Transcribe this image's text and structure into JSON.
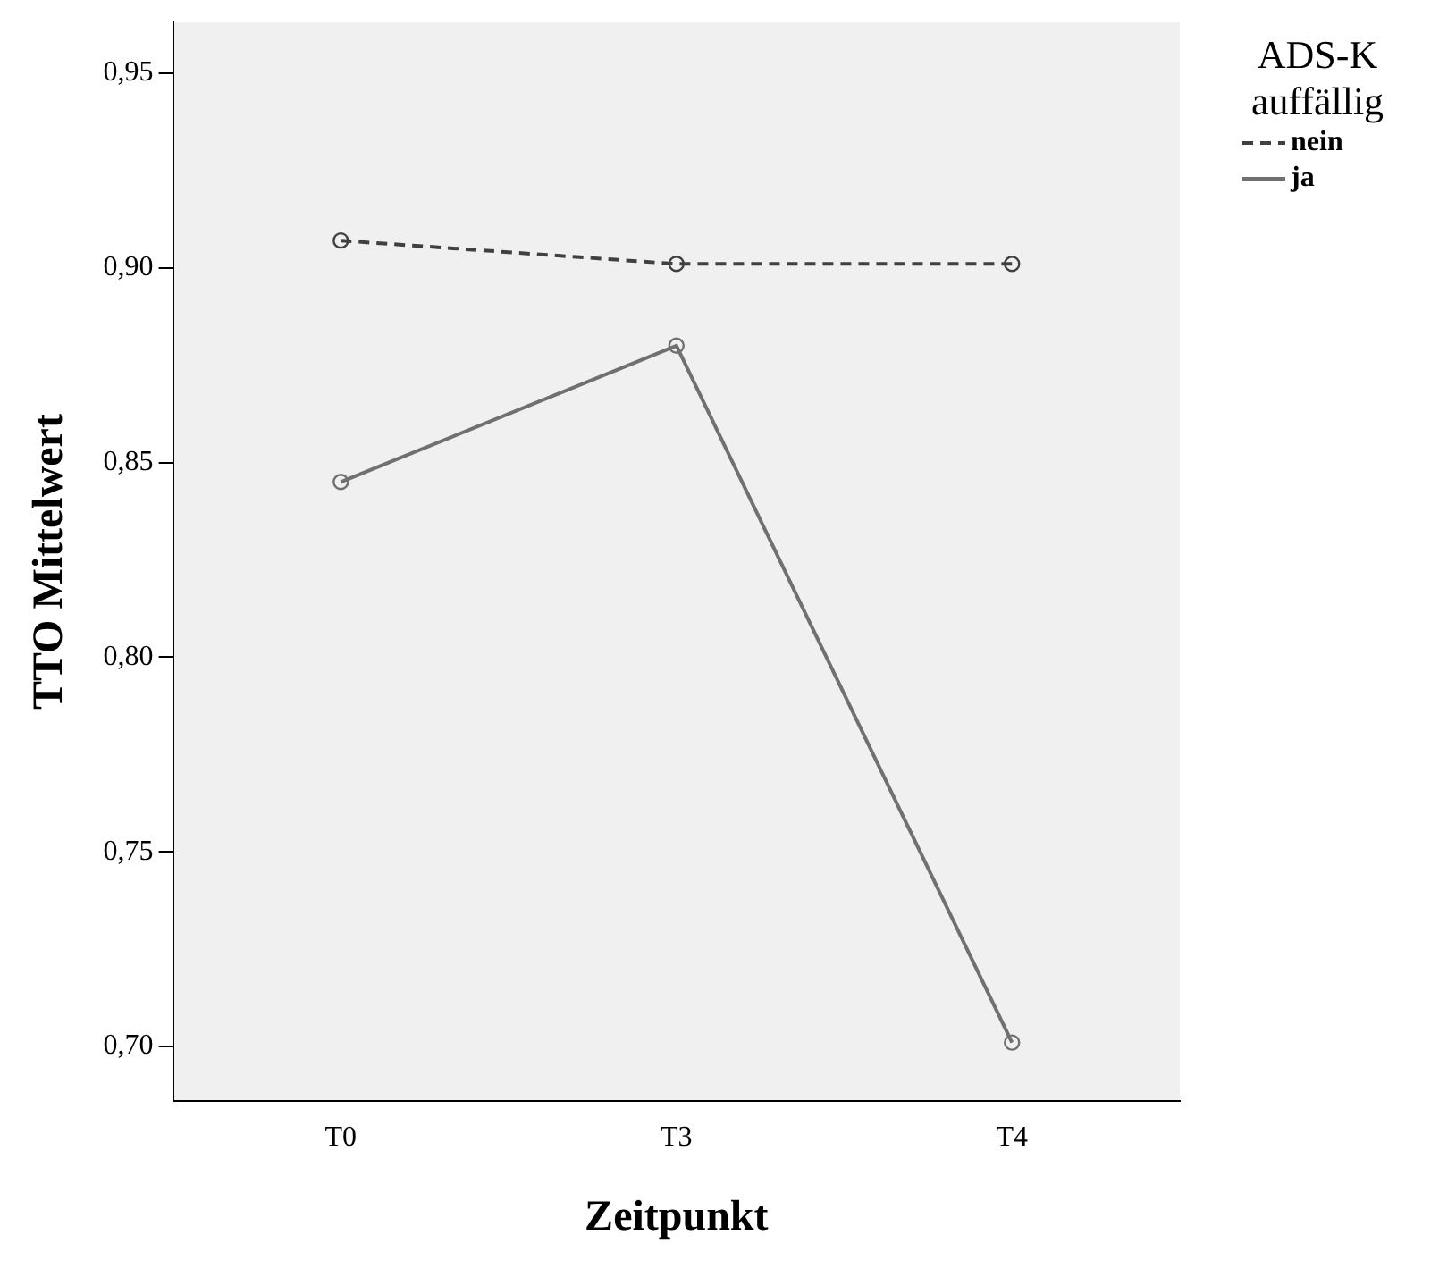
{
  "chart_data": {
    "type": "line",
    "xlabel": "Zeitpunkt",
    "ylabel": "TTO Mittelwert",
    "legend_title": "ADS-K auffällig",
    "categories": [
      "T0",
      "T3",
      "T4"
    ],
    "series": [
      {
        "name": "nein",
        "color": "#404040",
        "line_style": "dashed",
        "values": [
          0.907,
          0.901,
          0.901
        ]
      },
      {
        "name": "ja",
        "color": "#707070",
        "line_style": "solid",
        "values": [
          0.845,
          0.88,
          0.701
        ]
      }
    ],
    "ylim": [
      0.686,
      0.963
    ],
    "yticks": [
      {
        "value": 0.7,
        "label": "0,70"
      },
      {
        "value": 0.75,
        "label": "0,75"
      },
      {
        "value": 0.8,
        "label": "0,80"
      },
      {
        "value": 0.85,
        "label": "0,85"
      },
      {
        "value": 0.9,
        "label": "0,90"
      },
      {
        "value": 0.95,
        "label": "0,95"
      }
    ],
    "grid": false,
    "legend": "top right",
    "marker": "circle"
  }
}
